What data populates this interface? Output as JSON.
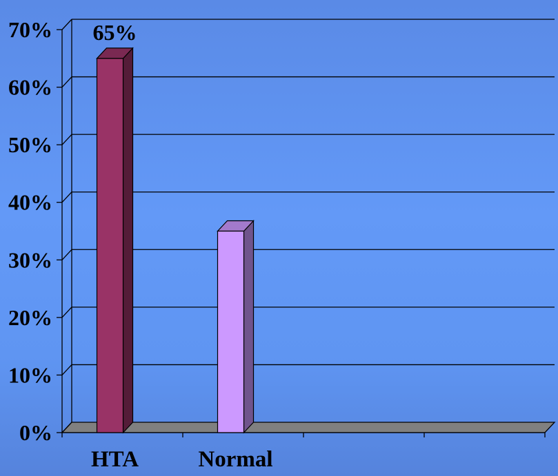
{
  "chart_data": {
    "type": "bar",
    "categories": [
      "HTA",
      "Normal"
    ],
    "values": [
      65,
      35
    ],
    "data_labels": [
      "65%",
      ""
    ],
    "yticks": [
      "0%",
      "10%",
      "20%",
      "30%",
      "40%",
      "50%",
      "60%",
      "70%"
    ],
    "ylim": [
      0,
      70
    ],
    "grid": true,
    "three_d": true,
    "colors": {
      "bars": [
        "#993366",
        "#cc99ff"
      ],
      "floor": "#808080",
      "gridline": "#000000"
    }
  }
}
